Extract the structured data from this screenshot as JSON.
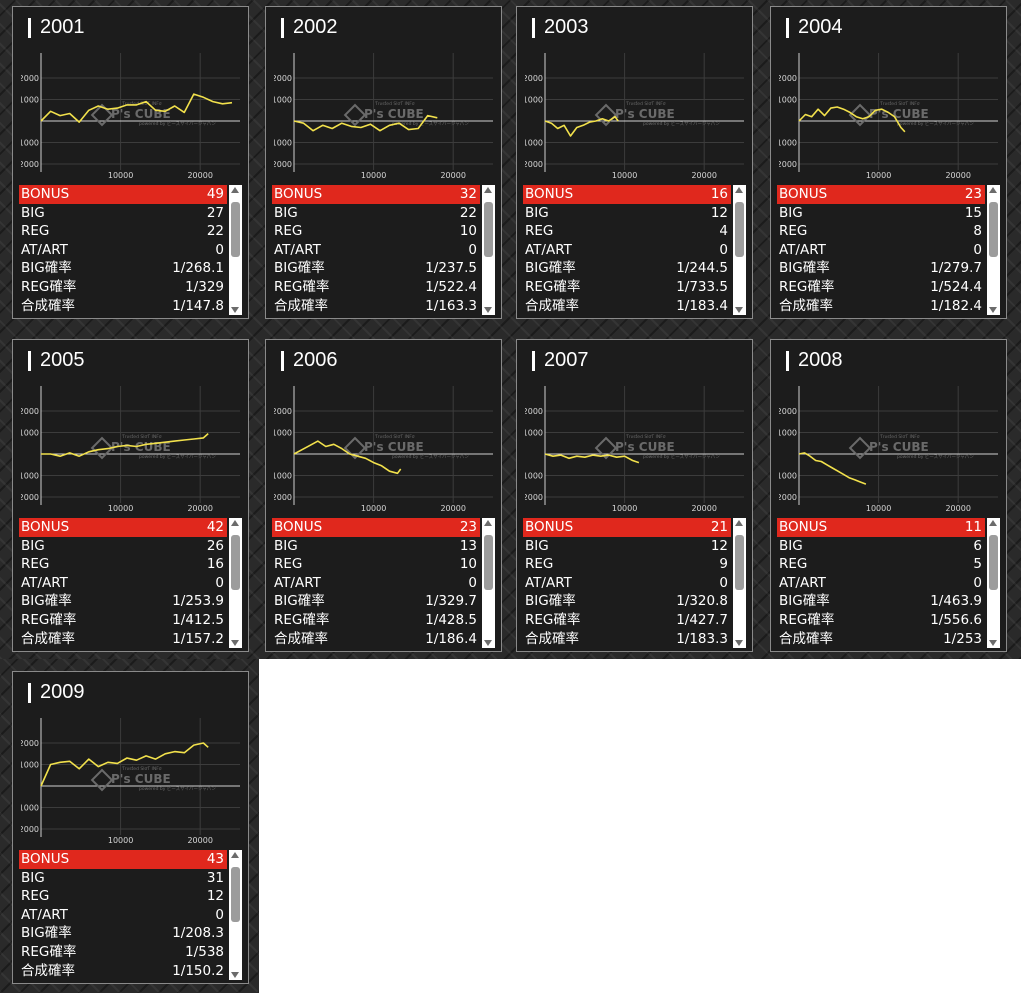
{
  "rows": [
    "BONUS",
    "BIG",
    "REG",
    "AT/ART",
    "BIG確率",
    "REG確率",
    "合成確率"
  ],
  "watermark": {
    "brand": "P's CUBE",
    "line1": "Ƭrυsƭed SlσƬ INFσ",
    "line2": "powered by ピーズサイバージャパン"
  },
  "colors": {
    "line": "#f2e14c",
    "highlight": "#e0281d",
    "panel": "#1c1c1c"
  },
  "charts": [
    {
      "title": "2001",
      "stats": [
        "49",
        "27",
        "22",
        "0",
        "1/268.1",
        "1/329",
        "1/147.8"
      ],
      "chart_data": {
        "type": "line",
        "x": [
          0,
          1200,
          2400,
          3600,
          4800,
          6000,
          7200,
          8400,
          9600,
          10800,
          12000,
          13200,
          14400,
          15600,
          16800,
          18000,
          19200,
          20400,
          21600,
          22800,
          24000
        ],
        "y": [
          0,
          450,
          250,
          350,
          -50,
          500,
          700,
          550,
          600,
          750,
          750,
          900,
          500,
          450,
          700,
          400,
          1250,
          1100,
          900,
          800,
          850
        ],
        "xticks": [
          "10000",
          "20000"
        ],
        "yticks": [
          "2000",
          "1000",
          "-1000",
          "-2000"
        ],
        "xlim": [
          0,
          25000
        ],
        "ylim": [
          -2000,
          2000
        ]
      }
    },
    {
      "title": "2002",
      "stats": [
        "32",
        "22",
        "10",
        "0",
        "1/237.5",
        "1/522.4",
        "1/163.3"
      ],
      "chart_data": {
        "type": "line",
        "x": [
          0,
          1200,
          2400,
          3600,
          4800,
          6000,
          7200,
          8400,
          9600,
          10800,
          12000,
          13200,
          14400,
          15600,
          16800,
          18000
        ],
        "y": [
          0,
          -100,
          -450,
          -200,
          -350,
          -100,
          -250,
          -300,
          -150,
          -450,
          -200,
          -100,
          -400,
          -350,
          250,
          150
        ],
        "xticks": [
          "10000",
          "20000"
        ],
        "yticks": [
          "2000",
          "1000",
          "-1000",
          "-2000"
        ],
        "xlim": [
          0,
          25000
        ],
        "ylim": [
          -2000,
          2000
        ]
      }
    },
    {
      "title": "2003",
      "stats": [
        "16",
        "12",
        "4",
        "0",
        "1/244.5",
        "1/733.5",
        "1/183.4"
      ],
      "chart_data": {
        "type": "line",
        "x": [
          0,
          800,
          1600,
          2400,
          3200,
          4000,
          4800,
          5600,
          6400,
          7200,
          8000,
          8800,
          9200
        ],
        "y": [
          0,
          -100,
          -350,
          -200,
          -700,
          -300,
          -200,
          -50,
          0,
          100,
          0,
          200,
          0
        ],
        "xticks": [
          "10000",
          "20000"
        ],
        "yticks": [
          "2000",
          "1000",
          "-1000",
          "-2000"
        ],
        "xlim": [
          0,
          25000
        ],
        "ylim": [
          -2000,
          2000
        ]
      }
    },
    {
      "title": "2004",
      "stats": [
        "23",
        "15",
        "8",
        "0",
        "1/279.7",
        "1/524.4",
        "1/182.4"
      ],
      "chart_data": {
        "type": "line",
        "x": [
          0,
          800,
          1600,
          2400,
          3200,
          4000,
          4800,
          5600,
          6400,
          7200,
          8000,
          8800,
          9600,
          10400,
          11200,
          12000,
          12800,
          13300
        ],
        "y": [
          0,
          300,
          200,
          550,
          250,
          600,
          650,
          550,
          400,
          200,
          100,
          200,
          500,
          550,
          400,
          200,
          -300,
          -500
        ],
        "xticks": [
          "10000",
          "20000"
        ],
        "yticks": [
          "2000",
          "1000",
          "-1000",
          "-2000"
        ],
        "xlim": [
          0,
          25000
        ],
        "ylim": [
          -2000,
          2000
        ]
      }
    },
    {
      "title": "2005",
      "stats": [
        "42",
        "26",
        "16",
        "0",
        "1/253.9",
        "1/412.5",
        "1/157.2"
      ],
      "chart_data": {
        "type": "line",
        "x": [
          0,
          1200,
          2400,
          3600,
          4800,
          6000,
          7200,
          8400,
          9600,
          10800,
          12000,
          13200,
          14400,
          15600,
          16800,
          18000,
          19200,
          20400,
          21000
        ],
        "y": [
          0,
          0,
          -100,
          50,
          -100,
          100,
          200,
          250,
          350,
          400,
          350,
          450,
          500,
          550,
          600,
          650,
          700,
          750,
          950
        ],
        "xticks": [
          "10000",
          "20000"
        ],
        "yticks": [
          "2000",
          "1000",
          "-1000",
          "-2000"
        ],
        "xlim": [
          0,
          25000
        ],
        "ylim": [
          -2000,
          2000
        ]
      }
    },
    {
      "title": "2006",
      "stats": [
        "23",
        "13",
        "10",
        "0",
        "1/329.7",
        "1/428.5",
        "1/186.4"
      ],
      "chart_data": {
        "type": "line",
        "x": [
          0,
          1000,
          2000,
          3000,
          4000,
          5000,
          6000,
          7000,
          8000,
          9000,
          10000,
          11000,
          12000,
          13000,
          13400
        ],
        "y": [
          0,
          200,
          400,
          600,
          350,
          450,
          250,
          0,
          -100,
          -200,
          -400,
          -550,
          -800,
          -900,
          -700
        ],
        "xticks": [
          "10000",
          "20000"
        ],
        "yticks": [
          "2000",
          "1000",
          "-1000",
          "-2000"
        ],
        "xlim": [
          0,
          25000
        ],
        "ylim": [
          -2000,
          2000
        ]
      }
    },
    {
      "title": "2007",
      "stats": [
        "21",
        "12",
        "9",
        "0",
        "1/320.8",
        "1/427.7",
        "1/183.3"
      ],
      "chart_data": {
        "type": "line",
        "x": [
          0,
          1000,
          2000,
          3000,
          4000,
          5000,
          6000,
          7000,
          8000,
          9000,
          10000,
          11000,
          11800
        ],
        "y": [
          0,
          -100,
          -50,
          -200,
          -100,
          -150,
          -50,
          -100,
          -50,
          -150,
          -100,
          -300,
          -400
        ],
        "xticks": [
          "10000",
          "20000"
        ],
        "yticks": [
          "2000",
          "1000",
          "-1000",
          "-2000"
        ],
        "xlim": [
          0,
          25000
        ],
        "ylim": [
          -2000,
          2000
        ]
      }
    },
    {
      "title": "2008",
      "stats": [
        "11",
        "6",
        "5",
        "0",
        "1/463.9",
        "1/556.6",
        "1/253"
      ],
      "chart_data": {
        "type": "line",
        "x": [
          0,
          700,
          1400,
          2100,
          2800,
          3500,
          4200,
          4900,
          5600,
          6300,
          7000,
          7700,
          8400
        ],
        "y": [
          0,
          50,
          -100,
          -300,
          -350,
          -500,
          -650,
          -800,
          -950,
          -1100,
          -1200,
          -1300,
          -1400
        ],
        "xticks": [
          "10000",
          "20000"
        ],
        "yticks": [
          "2000",
          "1000",
          "-1000",
          "-2000"
        ],
        "xlim": [
          0,
          25000
        ],
        "ylim": [
          -2000,
          2000
        ]
      }
    },
    {
      "title": "2009",
      "stats": [
        "43",
        "31",
        "12",
        "0",
        "1/208.3",
        "1/538",
        "1/150.2"
      ],
      "chart_data": {
        "type": "line",
        "x": [
          0,
          1200,
          2400,
          3600,
          4800,
          6000,
          7200,
          8400,
          9600,
          10800,
          12000,
          13200,
          14400,
          15600,
          16800,
          18000,
          19200,
          20400,
          21000
        ],
        "y": [
          0,
          1000,
          1100,
          1150,
          800,
          1250,
          900,
          1100,
          1050,
          1300,
          1200,
          1400,
          1250,
          1500,
          1600,
          1550,
          1900,
          2000,
          1800
        ],
        "xticks": [
          "10000",
          "20000"
        ],
        "yticks": [
          "2000",
          "1000",
          "-1000",
          "-2000"
        ],
        "xlim": [
          0,
          25000
        ],
        "ylim": [
          -2000,
          2000
        ]
      }
    }
  ]
}
